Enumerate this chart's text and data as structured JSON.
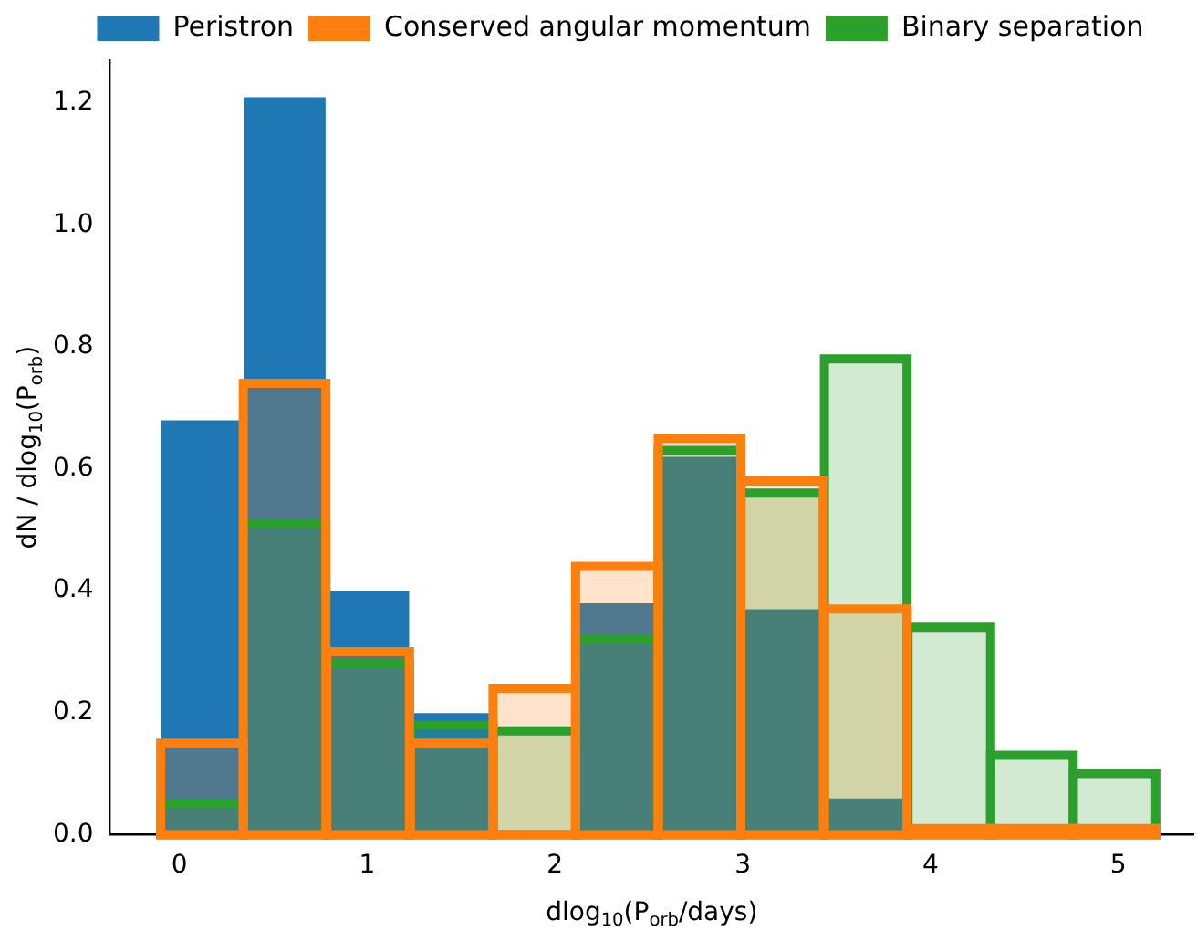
{
  "chart_data": {
    "type": "histogram",
    "xlabel": "dlog$_{10}$(P$_{orb}$/days)",
    "ylabel": "dN / dlog$_{10}$(P$_{orb}$)",
    "bins": [
      -0.1,
      0.34,
      0.78,
      1.23,
      1.67,
      2.11,
      2.55,
      2.99,
      3.43,
      3.88,
      4.32,
      4.76,
      5.2
    ],
    "series": [
      {
        "name": "Peristron",
        "color": "#1f77b4",
        "values": [
          0.68,
          1.21,
          0.4,
          0.2,
          null,
          0.38,
          0.62,
          0.37,
          0.06,
          0,
          0,
          0
        ]
      },
      {
        "name": "Conserved angular momentum",
        "color": "#ff7f0e",
        "values": [
          0.15,
          0.74,
          0.3,
          0.15,
          0.24,
          0.44,
          0.65,
          0.58,
          0.37,
          0.01,
          0.01,
          0.01
        ]
      },
      {
        "name": "Binary separation",
        "color": "#2ca02c",
        "values": [
          0.05,
          0.51,
          0.28,
          0.18,
          0.17,
          0.32,
          0.63,
          0.56,
          0.78,
          0.34,
          0.13,
          0.1
        ]
      }
    ],
    "xlim": [
      -0.37,
      5.4
    ],
    "xticks": [
      0,
      1,
      2,
      3,
      4,
      5
    ],
    "ylim": [
      0,
      1.27
    ],
    "yticks": [
      {
        "value": 0,
        "label": "0.0"
      },
      {
        "value": 0.2,
        "label": "0.2"
      },
      {
        "value": 0.4,
        "label": "0.4"
      },
      {
        "value": 0.6,
        "label": "0.6"
      },
      {
        "value": 0.8,
        "label": "0.8"
      },
      {
        "value": 1.0,
        "label": "1.0"
      },
      {
        "value": 1.2,
        "label": "1.2"
      }
    ],
    "legend": "top",
    "grid": false
  }
}
